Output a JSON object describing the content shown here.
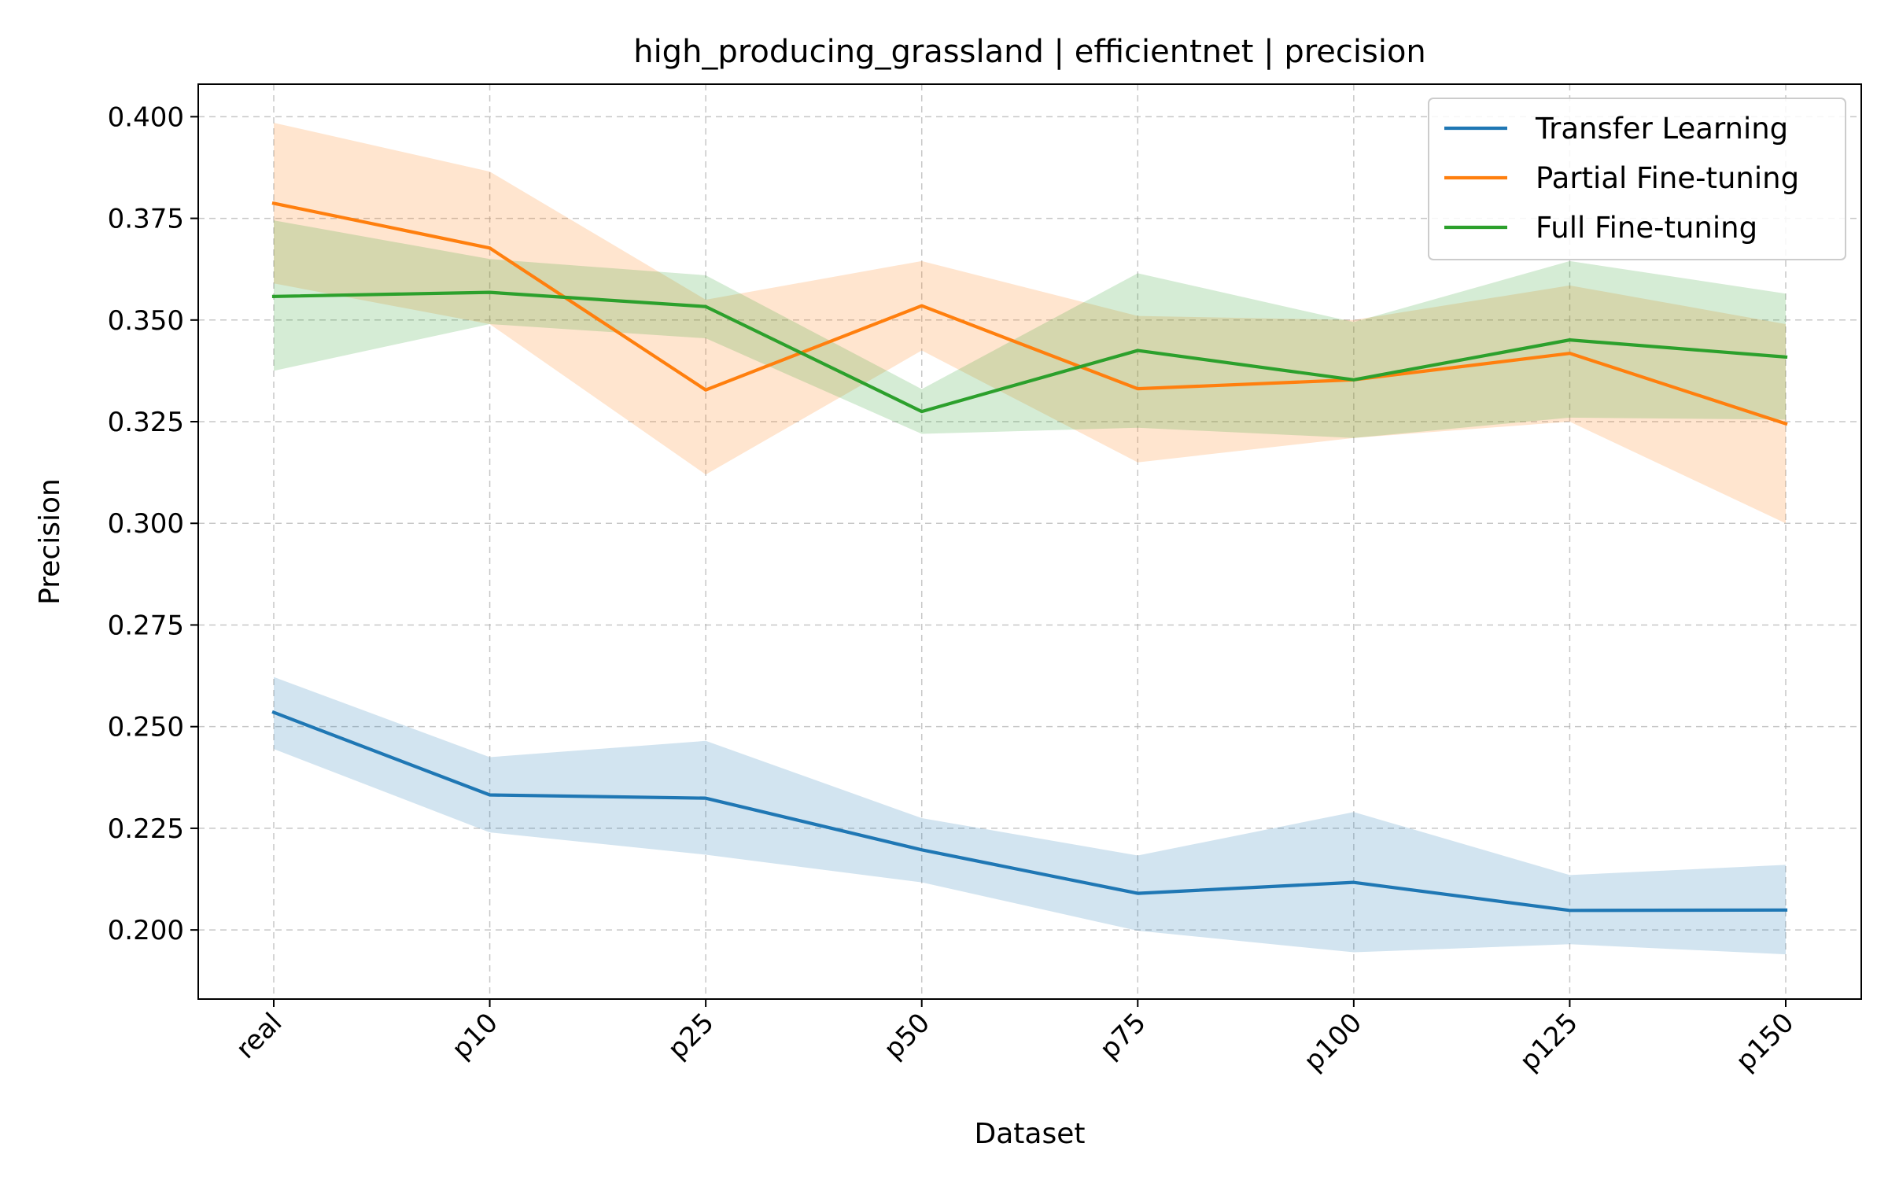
{
  "chart_data": {
    "type": "line",
    "title": "high_producing_grassland | efficientnet | precision",
    "xlabel": "Dataset",
    "ylabel": "Precision",
    "categories": [
      "real",
      "p10",
      "p25",
      "p50",
      "p75",
      "p100",
      "p125",
      "p150"
    ],
    "ylim": [
      0.183,
      0.408
    ],
    "yticks": [
      0.2,
      0.225,
      0.25,
      0.275,
      0.3,
      0.325,
      0.35,
      0.375,
      0.4
    ],
    "ytick_labels": [
      "0.200",
      "0.225",
      "0.250",
      "0.275",
      "0.300",
      "0.325",
      "0.350",
      "0.375",
      "0.400"
    ],
    "grid": true,
    "legend_position": "top-right",
    "series": [
      {
        "name": "Transfer Learning",
        "color": "#1f77b4",
        "values": [
          0.2535,
          0.2332,
          0.2324,
          0.2197,
          0.209,
          0.2117,
          0.2048,
          0.2049
        ],
        "upper": [
          0.2622,
          0.2425,
          0.2465,
          0.2275,
          0.2183,
          0.229,
          0.2135,
          0.216
        ],
        "lower": [
          0.2445,
          0.224,
          0.2185,
          0.2117,
          0.1998,
          0.1945,
          0.1965,
          0.194
        ]
      },
      {
        "name": "Partial Fine-tuning",
        "color": "#ff7f0e",
        "values": [
          0.3787,
          0.3677,
          0.3328,
          0.3535,
          0.3331,
          0.3353,
          0.3418,
          0.3245
        ],
        "upper": [
          0.3985,
          0.3865,
          0.355,
          0.3645,
          0.351,
          0.35,
          0.3585,
          0.349
        ],
        "lower": [
          0.359,
          0.349,
          0.312,
          0.3425,
          0.315,
          0.321,
          0.325,
          0.3
        ]
      },
      {
        "name": "Full Fine-tuning",
        "color": "#2ca02c",
        "values": [
          0.3558,
          0.3568,
          0.3533,
          0.3275,
          0.3425,
          0.3353,
          0.3451,
          0.3409
        ],
        "upper": [
          0.3745,
          0.365,
          0.361,
          0.333,
          0.3615,
          0.3495,
          0.3645,
          0.3565
        ],
        "lower": [
          0.3375,
          0.349,
          0.3455,
          0.322,
          0.3235,
          0.321,
          0.326,
          0.3255
        ]
      }
    ]
  }
}
